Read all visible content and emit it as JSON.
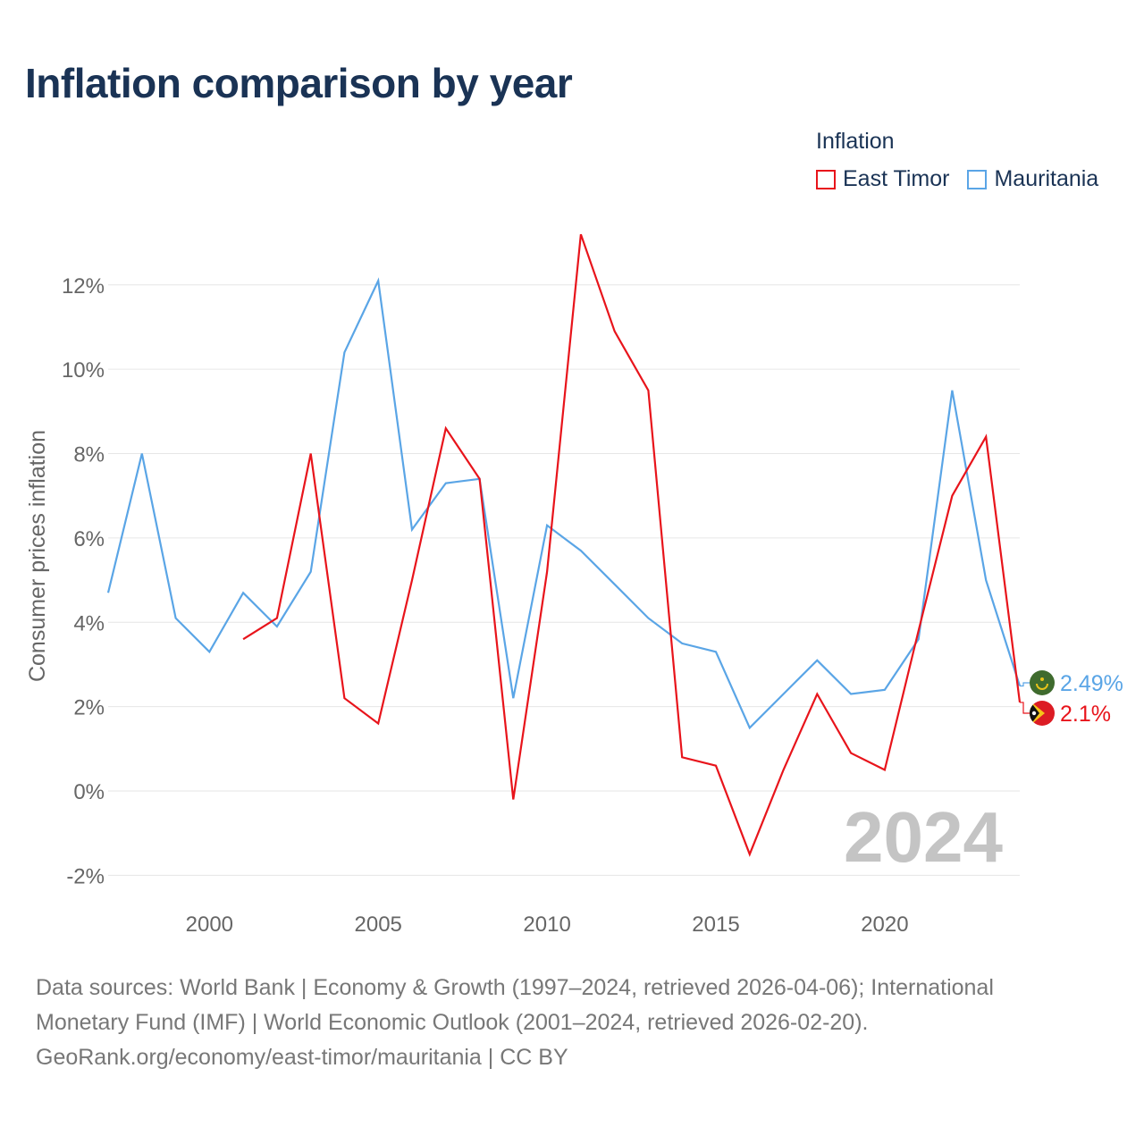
{
  "title": "Inflation comparison by year",
  "legend": {
    "title": "Inflation",
    "items": [
      {
        "label": "East Timor",
        "color": "#e8141b"
      },
      {
        "label": "Mauritania",
        "color": "#5aa5e6"
      }
    ]
  },
  "year_watermark": "2024",
  "footer": {
    "line1": "Data sources: World Bank | Economy & Growth (1997–2024, retrieved 2026-04-06); International",
    "line2": "Monetary Fund (IMF) | World Economic Outlook (2001–2024, retrieved 2026-02-20).",
    "line3": "GeoRank.org/economy/east-timor/mauritania | CC BY"
  },
  "chart_data": {
    "type": "line",
    "title": "Inflation comparison by year",
    "xlabel": "",
    "ylabel": "Consumer prices inflation",
    "xlim": [
      1997,
      2024
    ],
    "ylim": [
      -2.5,
      13.5
    ],
    "x_ticks": [
      2000,
      2005,
      2010,
      2015,
      2020
    ],
    "x_tick_labels": [
      "2000",
      "2005",
      "2010",
      "2015",
      "2020"
    ],
    "y_ticks": [
      -2,
      0,
      2,
      4,
      6,
      8,
      10,
      12
    ],
    "y_tick_labels": [
      "-2%",
      "0%",
      "2%",
      "4%",
      "6%",
      "8%",
      "10%",
      "12%"
    ],
    "grid": true,
    "series": [
      {
        "name": "East Timor",
        "color": "#e8141b",
        "flag": "east-timor-flag-icon",
        "end_label": "2.1%",
        "points": [
          [
            2001,
            3.6
          ],
          [
            2002,
            4.1
          ],
          [
            2003,
            8.0
          ],
          [
            2004,
            2.2
          ],
          [
            2005,
            1.6
          ],
          [
            2006,
            5.0
          ],
          [
            2007,
            8.6
          ],
          [
            2008,
            7.4
          ],
          [
            2009,
            -0.2
          ],
          [
            2010,
            5.2
          ],
          [
            2011,
            13.2
          ],
          [
            2012,
            10.9
          ],
          [
            2013,
            9.5
          ],
          [
            2014,
            0.8
          ],
          [
            2015,
            0.6
          ],
          [
            2016,
            -1.5
          ],
          [
            2017,
            0.5
          ],
          [
            2018,
            2.3
          ],
          [
            2019,
            0.9
          ],
          [
            2020,
            0.5
          ],
          [
            2021,
            3.8
          ],
          [
            2022,
            7.0
          ],
          [
            2023,
            8.4
          ],
          [
            2024,
            2.1
          ]
        ]
      },
      {
        "name": "Mauritania",
        "color": "#5aa5e6",
        "flag": "mauritania-flag-icon",
        "end_label": "2.49%",
        "points": [
          [
            1997,
            4.7
          ],
          [
            1998,
            8.0
          ],
          [
            1999,
            4.1
          ],
          [
            2000,
            3.3
          ],
          [
            2001,
            4.7
          ],
          [
            2002,
            3.9
          ],
          [
            2003,
            5.2
          ],
          [
            2004,
            10.4
          ],
          [
            2005,
            12.1
          ],
          [
            2006,
            6.2
          ],
          [
            2007,
            7.3
          ],
          [
            2008,
            7.4
          ],
          [
            2009,
            2.2
          ],
          [
            2010,
            6.3
          ],
          [
            2011,
            5.7
          ],
          [
            2012,
            4.9
          ],
          [
            2013,
            4.1
          ],
          [
            2014,
            3.5
          ],
          [
            2015,
            3.3
          ],
          [
            2016,
            1.5
          ],
          [
            2017,
            2.3
          ],
          [
            2018,
            3.1
          ],
          [
            2019,
            2.3
          ],
          [
            2020,
            2.4
          ],
          [
            2021,
            3.6
          ],
          [
            2022,
            9.5
          ],
          [
            2023,
            5.0
          ],
          [
            2024,
            2.49
          ]
        ]
      }
    ]
  }
}
